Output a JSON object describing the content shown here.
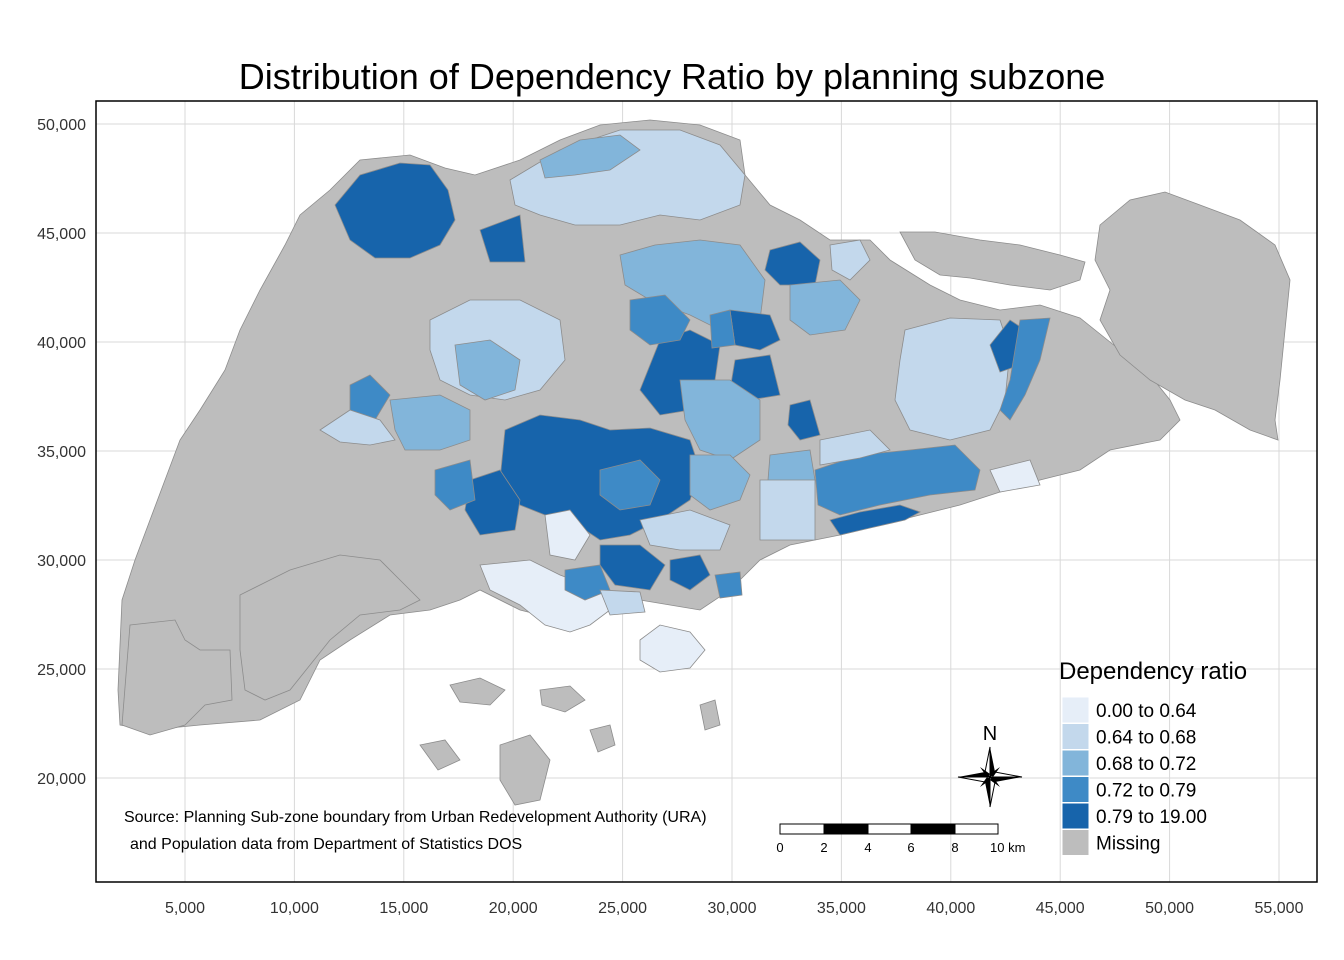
{
  "title": "Distribution of Dependency Ratio by planning subzone",
  "x_ticks": [
    "5,000",
    "10,000",
    "15,000",
    "20,000",
    "25,000",
    "30,000",
    "35,000",
    "40,000",
    "45,000",
    "50,000",
    "55,000"
  ],
  "y_ticks": [
    "50,000",
    "45,000",
    "40,000",
    "35,000",
    "30,000",
    "25,000",
    "20,000"
  ],
  "legend": {
    "title": "Dependency ratio",
    "items": [
      {
        "label": "0.00 to 0.64",
        "color": "#e6eef8"
      },
      {
        "label": "0.64 to 0.68",
        "color": "#c3d8ec"
      },
      {
        "label": "0.68 to 0.72",
        "color": "#82b5da"
      },
      {
        "label": "0.72 to 0.79",
        "color": "#3e8ac6"
      },
      {
        "label": "0.79 to 19.00",
        "color": "#1764ab"
      },
      {
        "label": "Missing",
        "color": "#bdbdbd"
      }
    ]
  },
  "source": {
    "line1": "Source: Planning Sub-zone boundary from Urban Redevelopment Authority (URA)",
    "line2": "and Population data from Department of Statistics DOS"
  },
  "scale_bar": {
    "labels": [
      "0",
      "2",
      "4",
      "6",
      "8",
      "10 km"
    ]
  },
  "north": "N",
  "chart_data": {
    "type": "choropleth",
    "title": "Distribution of Dependency Ratio by planning subzone",
    "xlim": [
      2000,
      56500
    ],
    "ylim": [
      15500,
      51000
    ],
    "grid": true,
    "legend_position": "bottom-right",
    "classes": [
      "0.00 to 0.64",
      "0.64 to 0.68",
      "0.68 to 0.72",
      "0.72 to 0.79",
      "0.79 to 19.00",
      "Missing"
    ]
  }
}
